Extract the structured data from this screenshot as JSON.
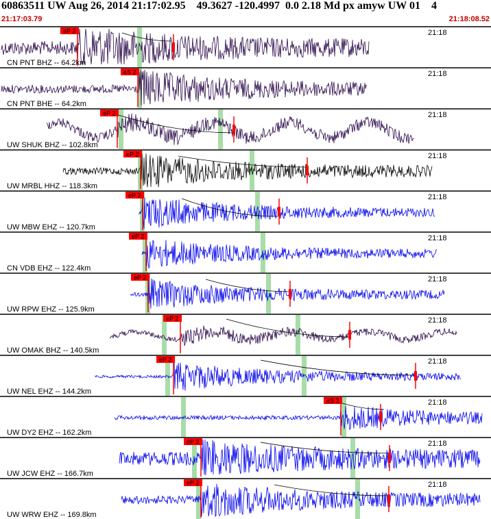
{
  "header": {
    "title": "60863511 UW Aug 26, 2014 21:17:02.95    49.3627 -120.4997  0.0 2.18 Md px amyw UW 01    4",
    "start_time": "21:17:03.79",
    "end_time": "21:18:08.52"
  },
  "colors": {
    "panel_line": "#000000",
    "pick_box": "#ff0000",
    "pick_text": "#000000",
    "window_band": "#a8dca8",
    "trace_broadband": "#2b0a4a",
    "trace_hh": "#000000",
    "trace_eh": "#0000ee",
    "arrival_curve": "#000000"
  },
  "traces": [
    {
      "label": "CN PNT BHZ -- 64.2km",
      "time_label": "21:18",
      "pick": "eP 2"
    },
    {
      "label": "CN PNT BHE -- 64.2km",
      "time_label": "21:18",
      "pick": "eS 2"
    },
    {
      "label": "UW SHUK BHZ -- 102.8km",
      "time_label": "21:18",
      "pick": "eP 2"
    },
    {
      "label": "UW MRBL HHZ -- 118.3km",
      "time_label": "21:18",
      "pick": "eP 2"
    },
    {
      "label": "UW MBW EHZ -- 120.7km",
      "time_label": "21:18",
      "pick": "eP 2"
    },
    {
      "label": "CN VDB EHZ -- 122.4km",
      "time_label": "21:18",
      "pick": "eP 2"
    },
    {
      "label": "UW RPW EHZ -- 125.9km",
      "time_label": "21:18",
      "pick": "eP 2"
    },
    {
      "label": "UW OMAK BHZ -- 140.5km",
      "time_label": "21:18",
      "pick": "eP 2"
    },
    {
      "label": "UW NEL EHZ -- 144.2km",
      "time_label": "21:18",
      "pick": "eP 2"
    },
    {
      "label": "UW DY2 EHZ -- 162.2km",
      "time_label": "21:18",
      "pick": "eS 2"
    },
    {
      "label": "UW JCW EHZ -- 166.7km",
      "time_label": "21:18",
      "pick": "eP 2"
    },
    {
      "label": "UW WRW EHZ -- 169.8km",
      "time_label": "21:18",
      "pick": "eP 2"
    }
  ]
}
